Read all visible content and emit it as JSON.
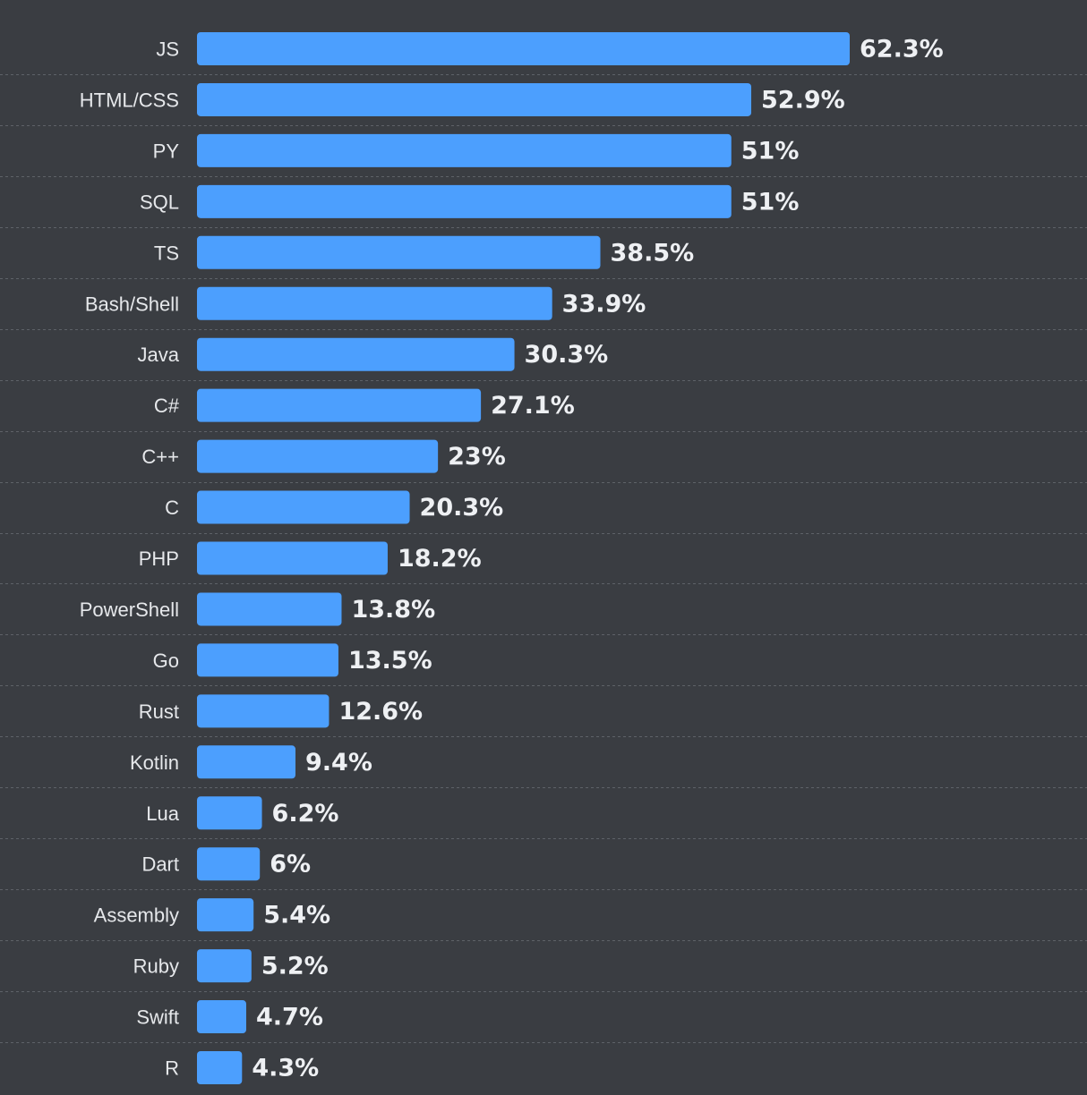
{
  "chart_data": {
    "type": "bar",
    "orientation": "horizontal",
    "title": "",
    "xlabel": "",
    "ylabel": "",
    "xlim": [
      0,
      62.3
    ],
    "grid": false,
    "legend": "none",
    "bar_color": "#4c9ffe",
    "background_color": "#3a3d42",
    "categories": [
      "JS",
      "HTML/CSS",
      "PY",
      "SQL",
      "TS",
      "Bash/Shell",
      "Java",
      "C#",
      "C++",
      "C",
      "PHP",
      "PowerShell",
      "Go",
      "Rust",
      "Kotlin",
      "Lua",
      "Dart",
      "Assembly",
      "Ruby",
      "Swift",
      "R"
    ],
    "values": [
      62.3,
      52.9,
      51,
      51,
      38.5,
      33.9,
      30.3,
      27.1,
      23,
      20.3,
      18.2,
      13.8,
      13.5,
      12.6,
      9.4,
      6.2,
      6,
      5.4,
      5.2,
      4.7,
      4.3
    ],
    "value_labels": [
      "62.3%",
      "52.9%",
      "51%",
      "51%",
      "38.5%",
      "33.9%",
      "30.3%",
      "27.1%",
      "23%",
      "20.3%",
      "18.2%",
      "13.8%",
      "13.5%",
      "12.6%",
      "9.4%",
      "6.2%",
      "6%",
      "5.4%",
      "5.2%",
      "4.7%",
      "4.3%"
    ]
  }
}
